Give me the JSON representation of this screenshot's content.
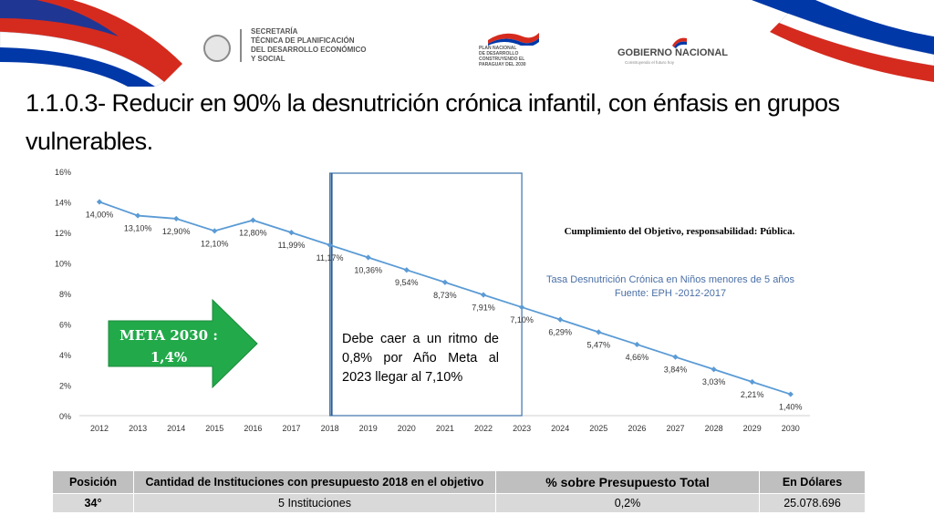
{
  "header": {
    "logo_secretaria": "SECRETARÍA\nTÉCNICA DE PLANIFICACIÓN\nDEL DESARROLLO ECONÓMICO\nY SOCIAL",
    "logo_plan": "PLAN NACIONAL\nDE DESARROLLO\nCONSTRUYENDO EL\nPARAGUAY DEL 2030",
    "logo_gobierno": "GOBIERNO NACIONAL",
    "logo_gobierno_tagline": "Construyendo el futuro hoy",
    "flag_colors": [
      "#d52b1e",
      "#ffffff",
      "#0038a8"
    ]
  },
  "title": "1.1.0.3- Reducir en 90% la desnutrición crónica infantil, con énfasis en grupos vulnerables.",
  "chart_data": {
    "type": "line",
    "x": [
      "2012",
      "2013",
      "2014",
      "2015",
      "2016",
      "2017",
      "2018",
      "2019",
      "2020",
      "2021",
      "2022",
      "2023",
      "2024",
      "2025",
      "2026",
      "2027",
      "2028",
      "2029",
      "2030"
    ],
    "values": [
      14.0,
      13.1,
      12.9,
      12.1,
      12.8,
      11.99,
      11.17,
      10.36,
      9.54,
      8.73,
      7.91,
      7.1,
      6.29,
      5.47,
      4.66,
      3.84,
      3.03,
      2.21,
      1.4
    ],
    "data_labels": [
      "14,00%",
      "13,10%",
      "12,90%",
      "12,10%",
      "12,80%",
      "11,99%",
      "11,17%",
      "10,36%",
      "9,54%",
      "8,73%",
      "7,91%",
      "7,10%",
      "6,29%",
      "5,47%",
      "4,66%",
      "3,84%",
      "3,03%",
      "2,21%",
      "1,40%"
    ],
    "y_ticks": [
      "0%",
      "2%",
      "4%",
      "6%",
      "8%",
      "10%",
      "12%",
      "14%",
      "16%"
    ],
    "ylim": [
      0,
      16
    ],
    "grid": false,
    "series_color": "#5b9bd5",
    "highlight_range": [
      "2018",
      "2023"
    ]
  },
  "labels": {
    "responsibility": "Cumplimiento del Objetivo, responsabilidad: Pública.",
    "source_line1": "Tasa Desnutrición Crónica en Niños menores de 5 años",
    "source_line2": "Fuente: EPH -2012-2017",
    "note": "Debe caer a un ritmo de 0,8% por Año Meta al 2023 llegar al 7,10%",
    "meta_line1": "META 2030 :",
    "meta_line2": "1,4%"
  },
  "table": {
    "headers": [
      "Posición",
      "Cantidad de Instituciones con presupuesto 2018 en el objetivo",
      "% sobre Presupuesto Total",
      "En Dólares"
    ],
    "row": [
      "34°",
      "5 Instituciones",
      "0,2%",
      "25.078.696"
    ]
  }
}
